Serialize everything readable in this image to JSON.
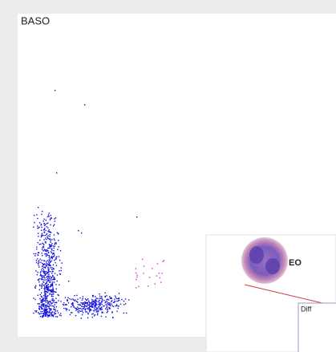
{
  "panel": {
    "title": "BASO"
  },
  "inset": {
    "label": "EO",
    "tab": "Diff"
  }
}
